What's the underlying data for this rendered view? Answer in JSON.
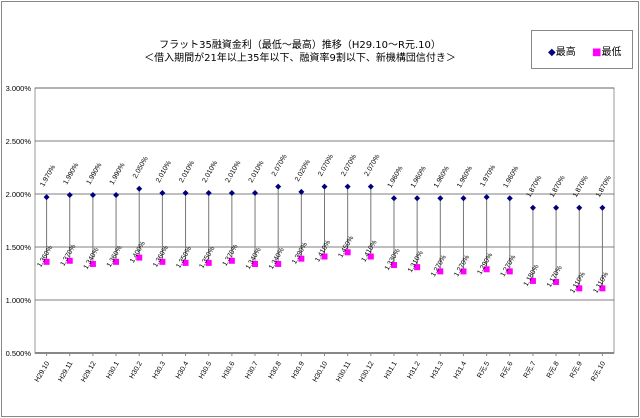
{
  "chart_data": {
    "type": "line",
    "title": "フラット35融資金利（最低～最高）推移（H29.10～R元.10）",
    "subtitle": "＜借入期間が21年以上35年以下、融資率9割以下、新機構団信付き＞",
    "ylim": [
      0.5,
      3.0
    ],
    "yticks": [
      "0.500%",
      "1.000%",
      "1.500%",
      "2.000%",
      "2.500%",
      "3.000%"
    ],
    "ytick_values": [
      0.5,
      1.0,
      1.5,
      2.0,
      2.5,
      3.0
    ],
    "legend": {
      "placement": "top-right"
    },
    "categories": [
      "H29.10",
      "H29.11",
      "H29.12",
      "H30.1",
      "H30.2",
      "H30.3",
      "H30.4",
      "H30.5",
      "H30.6",
      "H30.7",
      "H30.8",
      "H30.9",
      "H30.10",
      "H30.11",
      "H30.12",
      "H31.1",
      "H31.2",
      "H31.3",
      "H31.4",
      "R元.5",
      "R元.6",
      "R元.7",
      "R元.8",
      "R元.9",
      "R元.10"
    ],
    "series": [
      {
        "name": "最高",
        "color": "#000080",
        "marker": "diamond",
        "values": [
          1.97,
          1.99,
          1.99,
          1.99,
          2.05,
          2.01,
          2.01,
          2.01,
          2.01,
          2.01,
          2.07,
          2.02,
          2.07,
          2.07,
          2.07,
          1.96,
          1.96,
          1.96,
          1.96,
          1.97,
          1.96,
          1.87,
          1.87,
          1.87,
          1.87
        ],
        "labels": [
          "1.970%",
          "1.990%",
          "1.990%",
          "1.990%",
          "2.050%",
          "2.010%",
          "2.010%",
          "2.010%",
          "2.010%",
          "2.010%",
          "2.070%",
          "2.020%",
          "2.070%",
          "2.070%",
          "2.070%",
          "1.960%",
          "1.960%",
          "1.960%",
          "1.960%",
          "1.970%",
          "1.960%",
          "1.870%",
          "1.870%",
          "1.870%",
          "1.870%"
        ]
      },
      {
        "name": "最低",
        "color": "#ff00ff",
        "marker": "square",
        "values": [
          1.36,
          1.37,
          1.34,
          1.36,
          1.4,
          1.36,
          1.35,
          1.35,
          1.37,
          1.34,
          1.34,
          1.39,
          1.41,
          1.45,
          1.41,
          1.33,
          1.31,
          1.27,
          1.27,
          1.29,
          1.27,
          1.18,
          1.17,
          1.11,
          1.11
        ],
        "labels": [
          "1.360%",
          "1.370%",
          "1.340%",
          "1.360%",
          "1.400%",
          "1.360%",
          "1.350%",
          "1.350%",
          "1.370%",
          "1.340%",
          "1.340%",
          "1.390%",
          "1.410%",
          "1.450%",
          "1.410%",
          "1.330%",
          "1.310%",
          "1.270%",
          "1.270%",
          "1.290%",
          "1.270%",
          "1.180%",
          "1.170%",
          "1.110%",
          "1.110%"
        ]
      }
    ]
  }
}
